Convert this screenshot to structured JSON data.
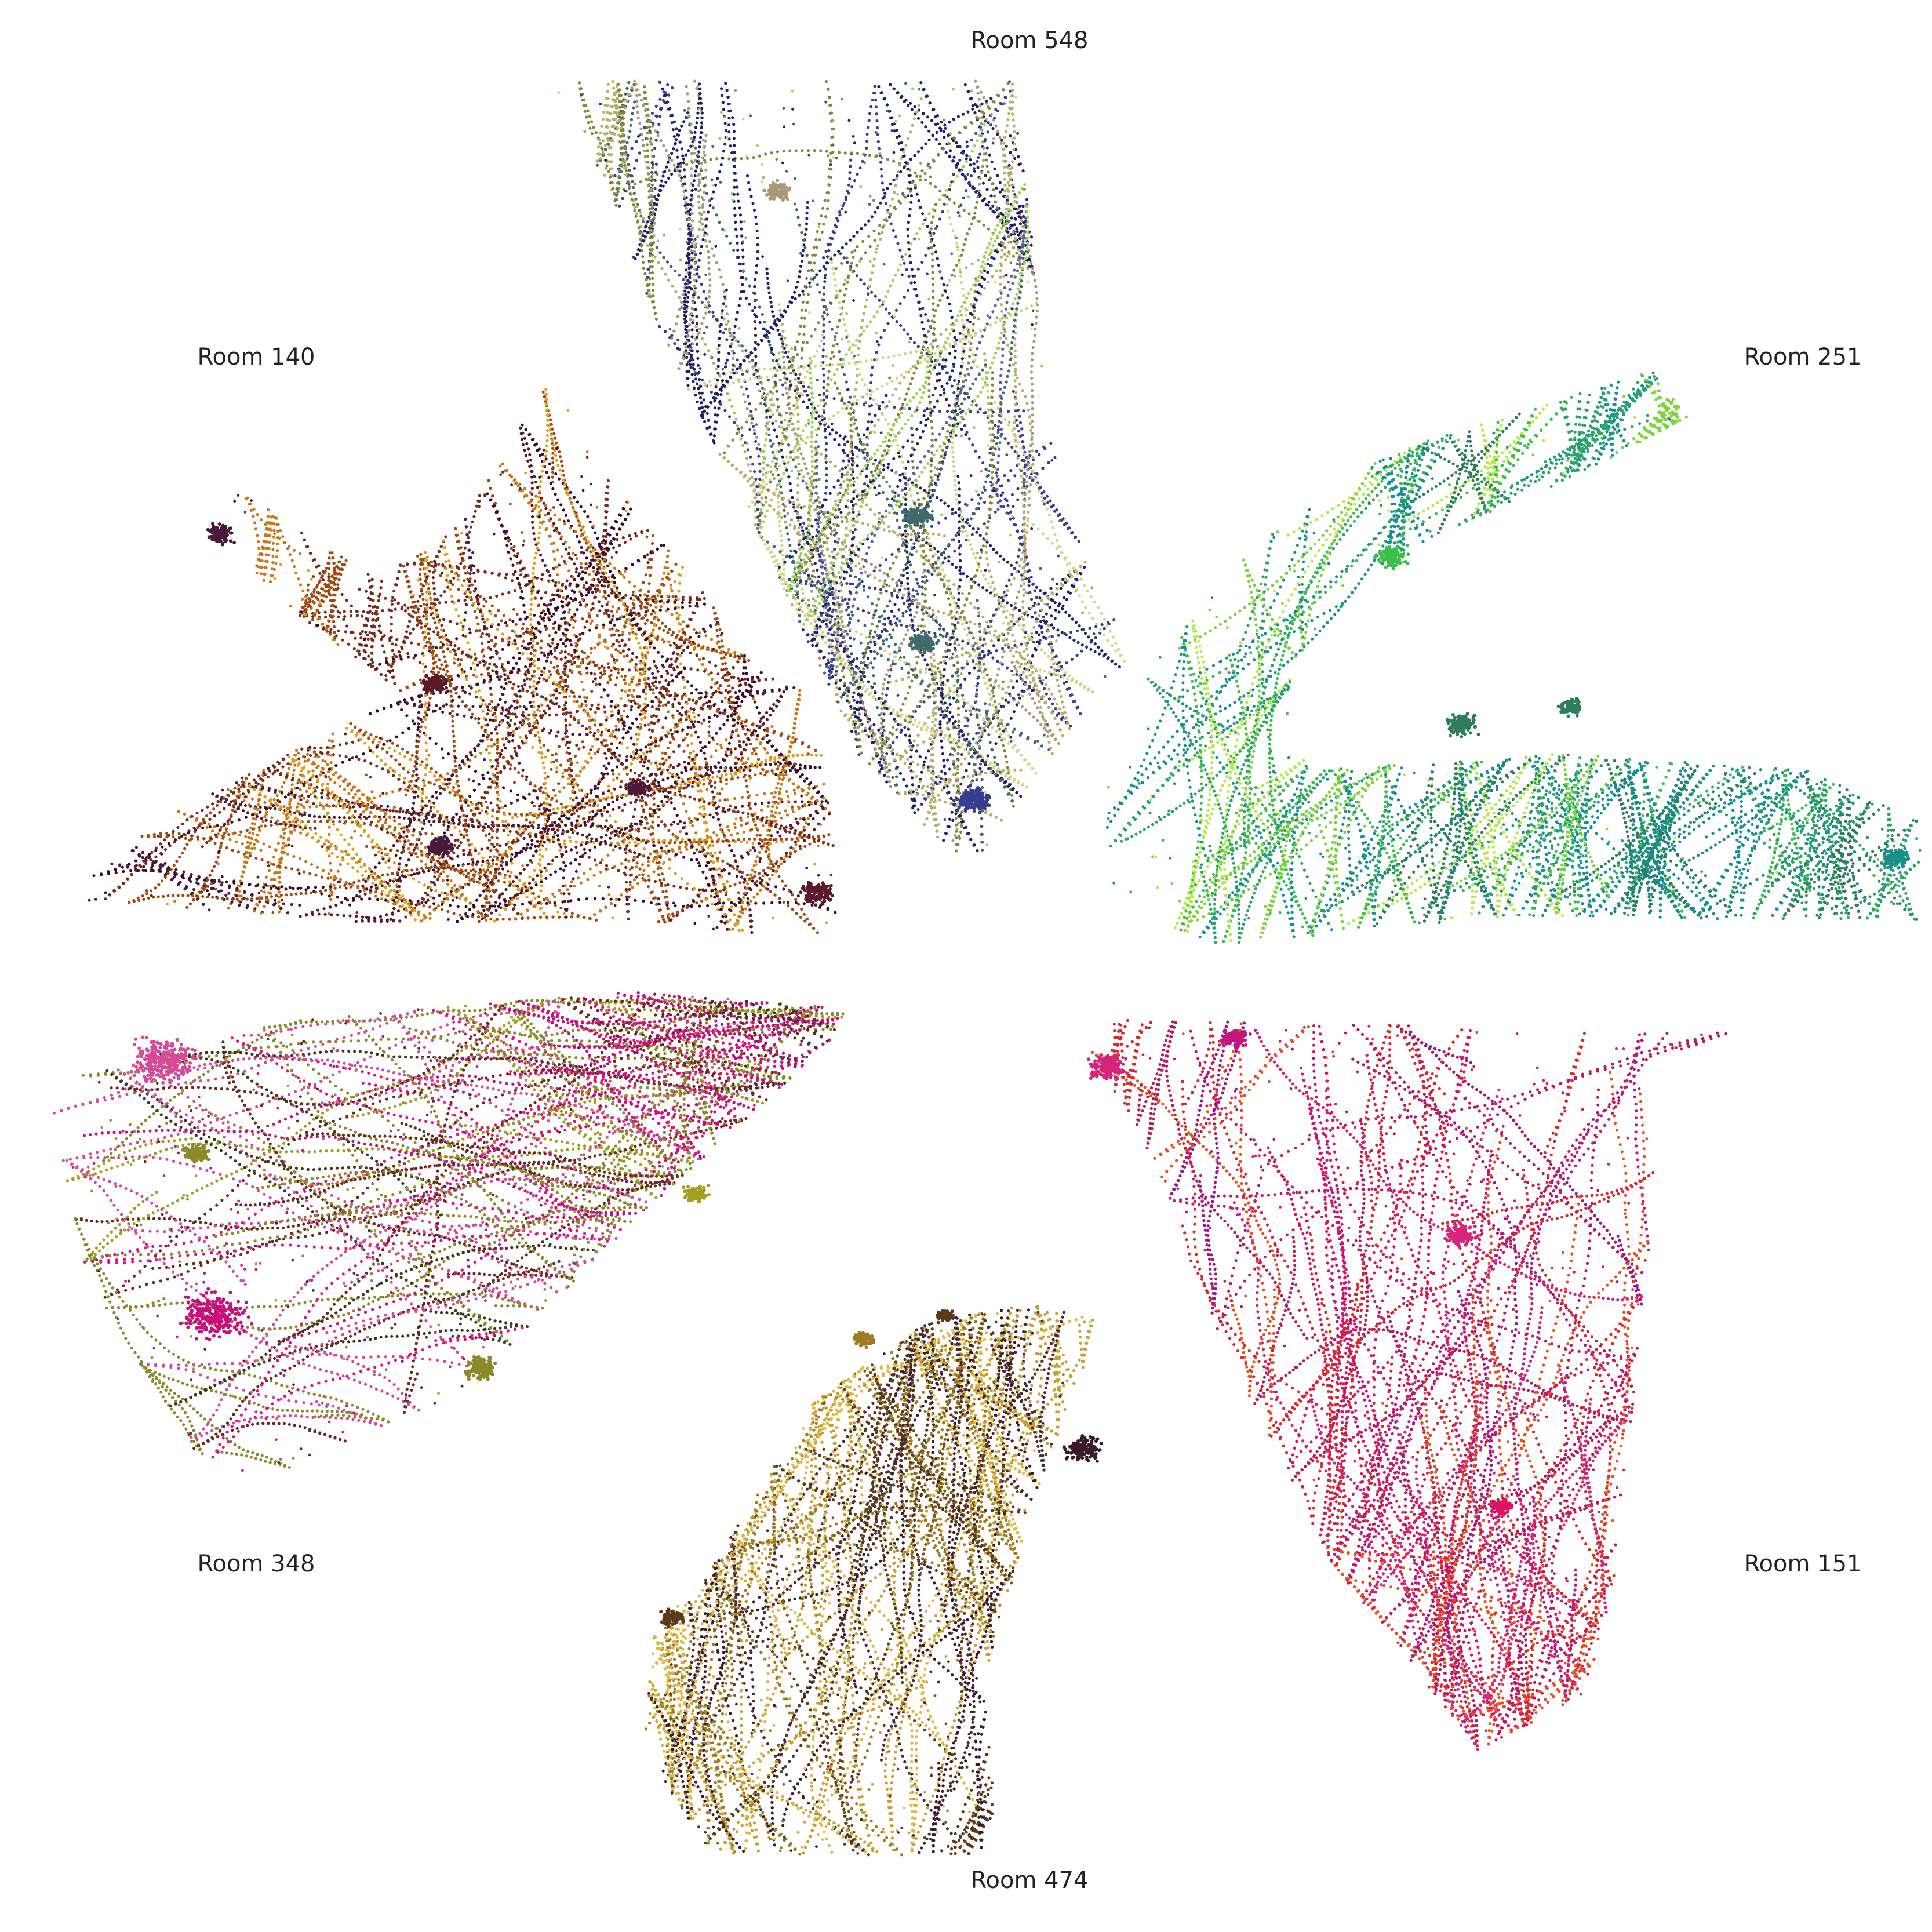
{
  "chart_data": {
    "type": "scatter",
    "layout": "radial small multiples (six room trajectory panels)",
    "point_style": "dense dotted motion trajectories",
    "panels": [
      {
        "label": "Room 548",
        "label_position": "top-center",
        "palette": [
          "#1f1f6b",
          "#3a3d8f",
          "#5a5fa6",
          "#7e8a3a",
          "#b8b06a",
          "#d6d68a",
          "#a89a78",
          "#3f6b6b",
          "#9fd45a"
        ]
      },
      {
        "label": "Room 251",
        "label_position": "upper-right",
        "palette": [
          "#1a8f8a",
          "#2aa36b",
          "#3bbf4a",
          "#7fd43a",
          "#b6ea4a",
          "#128f9a",
          "#2e7d5b"
        ]
      },
      {
        "label": "Room 151",
        "label_position": "lower-right",
        "palette": [
          "#e0115f",
          "#d6247a",
          "#c0187a",
          "#e8501e",
          "#d62a2a",
          "#b81a5a",
          "#a0148a"
        ]
      },
      {
        "label": "Room 474",
        "label_position": "bottom-center",
        "palette": [
          "#3a1a2a",
          "#5a3a1a",
          "#7a5a18",
          "#a07a20",
          "#c8a032",
          "#e0b848",
          "#4a2a3a"
        ]
      },
      {
        "label": "Room 348",
        "label_position": "lower-left",
        "palette": [
          "#e0108a",
          "#c8107a",
          "#a0a020",
          "#6a2a1a",
          "#d64a9a",
          "#8a8a2a",
          "#3a3a1a"
        ]
      },
      {
        "label": "Room 140",
        "label_position": "upper-left",
        "palette": [
          "#3a0a2a",
          "#5a1a2a",
          "#7a2a1a",
          "#a04a12",
          "#c8781a",
          "#e0a020",
          "#4a1a3a"
        ]
      }
    ]
  }
}
